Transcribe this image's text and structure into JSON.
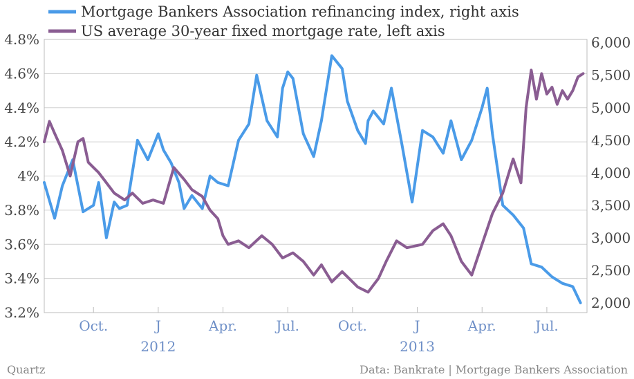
{
  "chart_data": {
    "type": "line",
    "legend": [
      {
        "label": "Mortgage Bankers Association refinancing index, right axis",
        "color": "#4a9be8"
      },
      {
        "label": "US average 30-year fixed mortgage rate, left axis",
        "color": "#8a5d92"
      }
    ],
    "x_ticks": [
      "Oct.",
      "J",
      "Apr.",
      "Jul.",
      "Oct.",
      "J",
      "Apr.",
      "Jul."
    ],
    "x_year_labels": [
      "2012",
      "2013"
    ],
    "left_axis": {
      "ticks": [
        "4.8%",
        "4.6%",
        "4.4%",
        "4.2%",
        "4%",
        "3.8%",
        "3.6%",
        "3.4%",
        "3.2%"
      ],
      "ylim": [
        3.2,
        4.8
      ]
    },
    "right_axis": {
      "ticks": [
        "6,000",
        "5,500",
        "5,000",
        "4,500",
        "4,000",
        "3,500",
        "3,000",
        "2,500",
        "2,000"
      ],
      "ylim": [
        1850,
        6050
      ]
    },
    "grid": true,
    "series": [
      {
        "name": "Mortgage Bankers Association refinancing index, right axis",
        "axis": "right",
        "color": "#4a9be8",
        "x": [
          2011.56,
          2011.6,
          2011.63,
          2011.67,
          2011.71,
          2011.75,
          2011.77,
          2011.8,
          2011.83,
          2011.85,
          2011.88,
          2011.92,
          2011.96,
          2012.0,
          2012.02,
          2012.05,
          2012.08,
          2012.1,
          2012.13,
          2012.17,
          2012.2,
          2012.23,
          2012.27,
          2012.31,
          2012.35,
          2012.38,
          2012.42,
          2012.46,
          2012.48,
          2012.5,
          2012.52,
          2012.56,
          2012.6,
          2012.63,
          2012.67,
          2012.71,
          2012.73,
          2012.77,
          2012.8,
          2012.81,
          2012.83,
          2012.87,
          2012.9,
          2012.94,
          2012.98,
          2013.02,
          2013.06,
          2013.1,
          2013.13,
          2013.17,
          2013.21,
          2013.25,
          2013.27,
          2013.29,
          2013.33,
          2013.37,
          2013.41,
          2013.44,
          2013.48,
          2013.52,
          2013.56,
          2013.6,
          2013.63
        ],
        "values": [
          3850,
          3300,
          3800,
          4200,
          3400,
          3500,
          3850,
          3000,
          3550,
          3450,
          3500,
          4500,
          4200,
          4600,
          4350,
          4150,
          3850,
          3450,
          3650,
          3450,
          3950,
          3850,
          3800,
          4500,
          4750,
          5500,
          4800,
          4550,
          5300,
          5550,
          5450,
          4600,
          4250,
          4800,
          5800,
          5600,
          5100,
          4650,
          4450,
          4800,
          4950,
          4750,
          5300,
          4450,
          3550,
          4650,
          4550,
          4300,
          4800,
          4200,
          4500,
          5000,
          5300,
          4600,
          3500,
          3350,
          3150,
          2600,
          2550,
          2400,
          2300,
          2250,
          2000
        ]
      },
      {
        "name": "US average 30-year fixed mortgage rate, left axis",
        "axis": "left",
        "color": "#8a5d92",
        "x": [
          2011.56,
          2011.58,
          2011.6,
          2011.63,
          2011.66,
          2011.69,
          2011.71,
          2011.73,
          2011.75,
          2011.77,
          2011.79,
          2011.83,
          2011.87,
          2011.9,
          2011.94,
          2011.98,
          2012.02,
          2012.06,
          2012.1,
          2012.13,
          2012.17,
          2012.2,
          2012.23,
          2012.25,
          2012.27,
          2012.31,
          2012.35,
          2012.4,
          2012.44,
          2012.48,
          2012.52,
          2012.56,
          2012.6,
          2012.63,
          2012.67,
          2012.71,
          2012.75,
          2012.77,
          2012.81,
          2012.85,
          2012.88,
          2012.92,
          2012.96,
          2013.02,
          2013.06,
          2013.1,
          2013.13,
          2013.17,
          2013.21,
          2013.25,
          2013.29,
          2013.33,
          2013.37,
          2013.4,
          2013.42,
          2013.44,
          2013.46,
          2013.48,
          2013.5,
          2013.52,
          2013.54,
          2013.56,
          2013.58,
          2013.6,
          2013.62,
          2013.64
        ],
        "values": [
          4.2,
          4.32,
          4.25,
          4.15,
          4.0,
          4.2,
          4.22,
          4.08,
          4.05,
          4.02,
          3.98,
          3.9,
          3.86,
          3.9,
          3.84,
          3.86,
          3.84,
          4.05,
          3.98,
          3.92,
          3.88,
          3.8,
          3.75,
          3.65,
          3.6,
          3.62,
          3.58,
          3.65,
          3.6,
          3.52,
          3.55,
          3.5,
          3.42,
          3.48,
          3.38,
          3.44,
          3.38,
          3.35,
          3.32,
          3.4,
          3.5,
          3.62,
          3.58,
          3.6,
          3.68,
          3.72,
          3.65,
          3.5,
          3.42,
          3.6,
          3.78,
          3.9,
          4.1,
          3.96,
          4.4,
          4.62,
          4.45,
          4.6,
          4.48,
          4.52,
          4.42,
          4.5,
          4.45,
          4.5,
          4.58,
          4.6
        ]
      }
    ]
  },
  "footer": {
    "left": "Quartz",
    "right": "Data: Bankrate | Mortgage Bankers Association"
  }
}
